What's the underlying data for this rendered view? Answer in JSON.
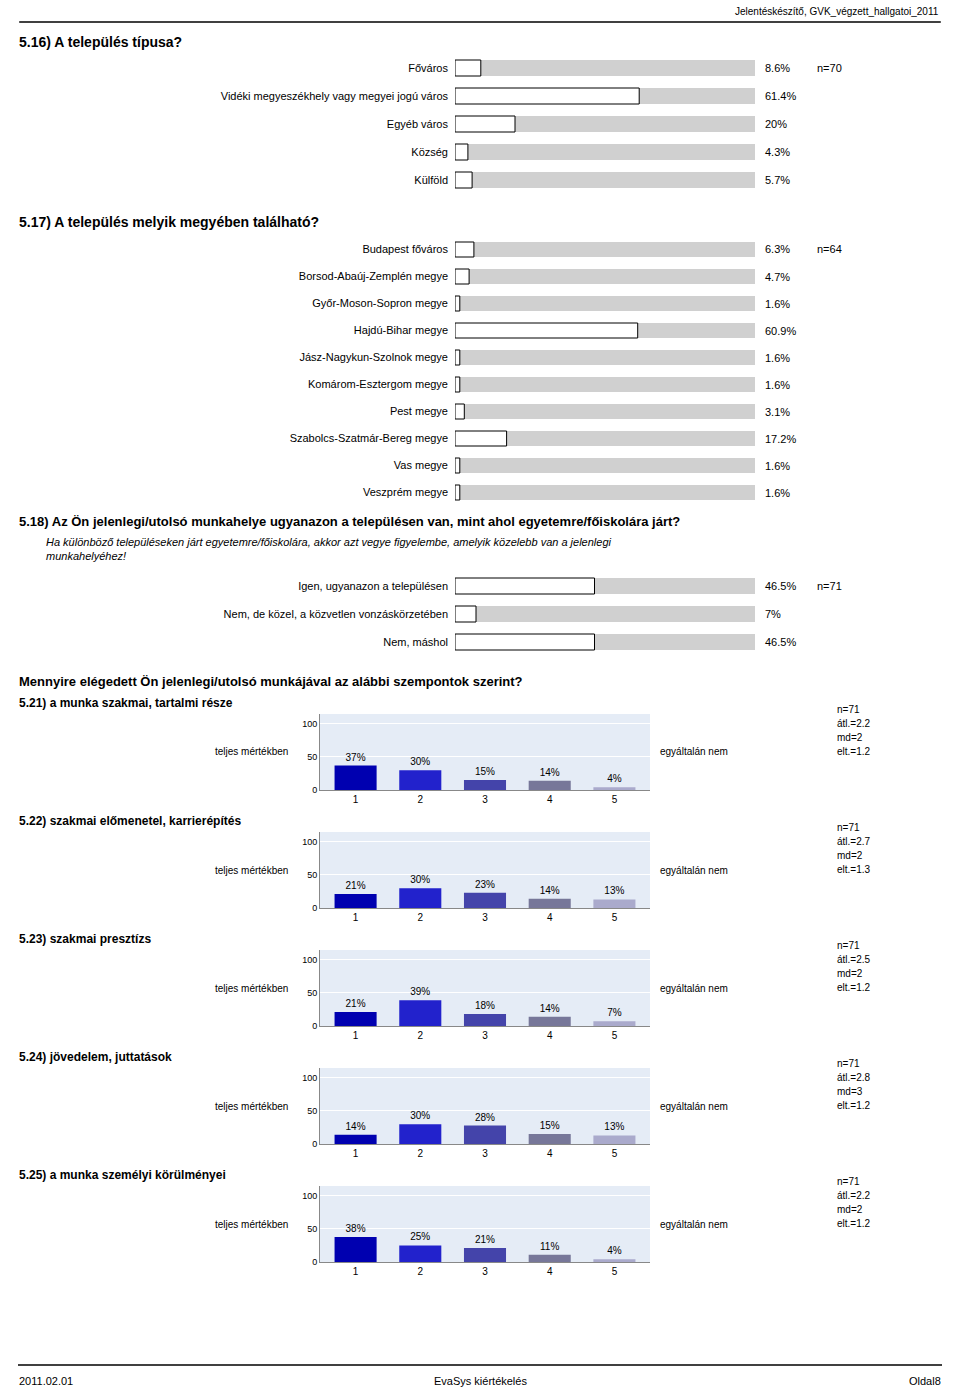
{
  "annotations": [
    "Jelentéskészítő, GVK_végzett_hallgatoi_2011",
    "2011.02.01",
    "EvaSys kiértékelés",
    "Oldal8",
    "Mennyire elégedett Ön jelenlegi/utolsó munkájával az alábbi szempontok szerint?"
  ],
  "chart_data": [
    {
      "type": "bar",
      "orientation": "horizontal",
      "title": "5.16) A település típusa?",
      "categories": [
        "Főváros",
        "Vidéki megyeszékhely vagy megyei jogú város",
        "Egyéb város",
        "Község",
        "Külföld"
      ],
      "values": [
        8.6,
        61.4,
        20.0,
        4.3,
        5.7
      ],
      "value_labels": [
        "8.6%",
        "61.4%",
        "20%",
        "4.3%",
        "5.7%"
      ],
      "data_labels": true,
      "color": "#ffffff",
      "xlim": [
        0,
        100
      ],
      "xticks": [],
      "tick_labels": "y",
      "grid": false,
      "annotations": [
        "n=70"
      ]
    },
    {
      "type": "bar",
      "orientation": "horizontal",
      "title": "5.17) A település melyik megyében található?",
      "categories": [
        "Budapest főváros",
        "Borsod-Abaúj-Zemplén megye",
        "Győr-Moson-Sopron megye",
        "Hajdú-Bihar megye",
        "Jász-Nagykun-Szolnok megye",
        "Komárom-Esztergom megye",
        "Pest megye",
        "Szabolcs-Szatmár-Bereg megye",
        "Vas megye",
        "Veszprém megye"
      ],
      "values": [
        6.3,
        4.7,
        1.6,
        60.9,
        1.6,
        1.6,
        3.1,
        17.2,
        1.6,
        1.6
      ],
      "value_labels": [
        "6.3%",
        "4.7%",
        "1.6%",
        "60.9%",
        "1.6%",
        "1.6%",
        "3.1%",
        "17.2%",
        "1.6%",
        "1.6%"
      ],
      "data_labels": true,
      "color": "#ffffff",
      "xlim": [
        0,
        100
      ],
      "xticks": [],
      "tick_labels": "y",
      "grid": false,
      "annotations": [
        "n=64"
      ]
    },
    {
      "type": "bar",
      "orientation": "horizontal",
      "title": "5.18) Az Ön jelenlegi/utolsó munkahelye ugyanazon a településen van, mint ahol egyetemre/főiskolára járt?",
      "subtitle": [
        "Ha különböző településeken járt egyetemre/főiskolára, akkor azt vegye figyelembe, amelyik közelebb van a jelenlegi",
        "munkahelyéhez!"
      ],
      "categories": [
        "Igen, ugyanazon a településen",
        "Nem, de közel, a közvetlen vonzáskörzetében",
        "Nem, máshol"
      ],
      "values": [
        46.5,
        7.0,
        46.5
      ],
      "value_labels": [
        "46.5%",
        "7%",
        "46.5%"
      ],
      "data_labels": true,
      "color": "#ffffff",
      "xlim": [
        0,
        100
      ],
      "xticks": [],
      "tick_labels": "y",
      "grid": false,
      "annotations": [
        "n=71"
      ]
    },
    {
      "type": "bar",
      "title": "5.21) a munka szakmai, tartalmi része",
      "categories": [
        "1",
        "2",
        "3",
        "4",
        "5"
      ],
      "values": [
        37,
        30,
        15,
        14,
        4
      ],
      "value_labels": [
        "37%",
        "30%",
        "15%",
        "14%",
        "4%"
      ],
      "data_labels": true,
      "colors": [
        "#0000b0",
        "#2222cc",
        "#4444aa",
        "#777799",
        "#aaaacc"
      ],
      "ylim": [
        0,
        115
      ],
      "yticks": [
        0,
        50,
        100
      ],
      "grid": true,
      "annotations": [
        "teljes mértékben",
        "egyáltalán nem",
        "n=71",
        "átl.=2.2",
        "md=2",
        "elt.=1.2"
      ]
    },
    {
      "type": "bar",
      "title": "5.22) szakmai előmenetel, karrierépítés",
      "categories": [
        "1",
        "2",
        "3",
        "4",
        "5"
      ],
      "values": [
        21,
        30,
        23,
        14,
        13
      ],
      "value_labels": [
        "21%",
        "30%",
        "23%",
        "14%",
        "13%"
      ],
      "data_labels": true,
      "colors": [
        "#0000b0",
        "#2222cc",
        "#4444aa",
        "#777799",
        "#aaaacc"
      ],
      "ylim": [
        0,
        115
      ],
      "yticks": [
        0,
        50,
        100
      ],
      "grid": true,
      "annotations": [
        "teljes mértékben",
        "egyáltalán nem",
        "n=71",
        "átl.=2.7",
        "md=2",
        "elt.=1.3"
      ]
    },
    {
      "type": "bar",
      "title": "5.23) szakmai presztízs",
      "categories": [
        "1",
        "2",
        "3",
        "4",
        "5"
      ],
      "values": [
        21,
        39,
        18,
        14,
        7
      ],
      "value_labels": [
        "21%",
        "39%",
        "18%",
        "14%",
        "7%"
      ],
      "data_labels": true,
      "colors": [
        "#0000b0",
        "#2222cc",
        "#4444aa",
        "#777799",
        "#aaaacc"
      ],
      "ylim": [
        0,
        115
      ],
      "yticks": [
        0,
        50,
        100
      ],
      "grid": true,
      "annotations": [
        "teljes mértékben",
        "egyáltalán nem",
        "n=71",
        "átl.=2.5",
        "md=2",
        "elt.=1.2"
      ]
    },
    {
      "type": "bar",
      "title": "5.24) jövedelem, juttatások",
      "categories": [
        "1",
        "2",
        "3",
        "4",
        "5"
      ],
      "values": [
        14,
        30,
        28,
        15,
        13
      ],
      "value_labels": [
        "14%",
        "30%",
        "28%",
        "15%",
        "13%"
      ],
      "data_labels": true,
      "colors": [
        "#0000b0",
        "#2222cc",
        "#4444aa",
        "#777799",
        "#aaaacc"
      ],
      "ylim": [
        0,
        115
      ],
      "yticks": [
        0,
        50,
        100
      ],
      "grid": true,
      "annotations": [
        "teljes mértékben",
        "egyáltalán nem",
        "n=71",
        "átl.=2.8",
        "md=3",
        "elt.=1.2"
      ]
    },
    {
      "type": "bar",
      "title": "5.25) a munka személyi körülményei",
      "categories": [
        "1",
        "2",
        "3",
        "4",
        "5"
      ],
      "values": [
        38,
        25,
        21,
        11,
        4
      ],
      "value_labels": [
        "38%",
        "25%",
        "21%",
        "11%",
        "4%"
      ],
      "data_labels": true,
      "colors": [
        "#0000b0",
        "#2222cc",
        "#4444aa",
        "#777799",
        "#aaaacc"
      ],
      "ylim": [
        0,
        115
      ],
      "yticks": [
        0,
        50,
        100
      ],
      "grid": true,
      "annotations": [
        "teljes mértékben",
        "egyáltalán nem",
        "n=71",
        "átl.=2.2",
        "md=2",
        "elt.=1.2"
      ]
    }
  ]
}
